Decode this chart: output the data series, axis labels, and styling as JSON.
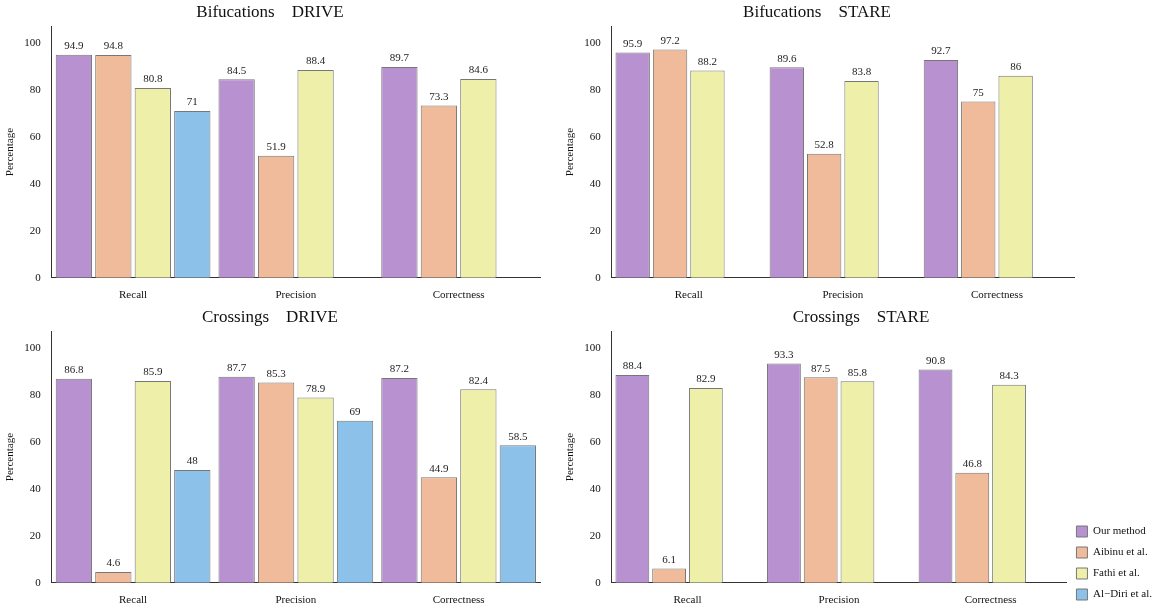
{
  "chart_data": [
    {
      "type": "bar",
      "title": "Bifucations    DRIVE",
      "ylabel": "Percentage",
      "categories": [
        "Recall",
        "Precision",
        "Correctness"
      ],
      "ylim": [
        0,
        107
      ],
      "yticks": [
        0,
        20,
        40,
        60,
        80,
        100
      ],
      "grid": false,
      "data_labels": true,
      "legend": false,
      "series": [
        {
          "color": "#b892d0",
          "values": [
            94.9,
            84.5,
            89.7
          ]
        },
        {
          "color": "#f0bb9a",
          "values": [
            94.8,
            51.9,
            73.3
          ]
        },
        {
          "color": "#eef0aa",
          "values": [
            80.8,
            88.4,
            84.6
          ]
        },
        {
          "color": "#8cc2ea",
          "values": [
            71,
            null,
            null
          ]
        }
      ]
    },
    {
      "type": "bar",
      "title": "Bifucations    STARE",
      "ylabel": "Percentage",
      "categories": [
        "Recall",
        "Precision",
        "Correctness"
      ],
      "ylim": [
        0,
        107
      ],
      "yticks": [
        0,
        20,
        40,
        60,
        80,
        100
      ],
      "grid": false,
      "data_labels": true,
      "legend": false,
      "series": [
        {
          "color": "#b892d0",
          "values": [
            95.9,
            89.6,
            92.7
          ]
        },
        {
          "color": "#f0bb9a",
          "values": [
            97.2,
            52.8,
            75
          ]
        },
        {
          "color": "#eef0aa",
          "values": [
            88.2,
            83.8,
            86
          ]
        },
        {
          "color": "#8cc2ea",
          "values": [
            null,
            null,
            null
          ]
        }
      ]
    },
    {
      "type": "bar",
      "title": "Crossings    DRIVE",
      "ylabel": "Percentage",
      "categories": [
        "Recall",
        "Precision",
        "Correctness"
      ],
      "ylim": [
        0,
        107
      ],
      "yticks": [
        0,
        20,
        40,
        60,
        80,
        100
      ],
      "grid": false,
      "data_labels": true,
      "legend": false,
      "series": [
        {
          "color": "#b892d0",
          "values": [
            86.8,
            87.7,
            87.2
          ]
        },
        {
          "color": "#f0bb9a",
          "values": [
            4.6,
            85.3,
            44.9
          ]
        },
        {
          "color": "#eef0aa",
          "values": [
            85.9,
            78.9,
            82.4
          ]
        },
        {
          "color": "#8cc2ea",
          "values": [
            48,
            69,
            58.5
          ]
        }
      ]
    },
    {
      "type": "bar",
      "title": "Crossings    STARE",
      "ylabel": "Percentage",
      "categories": [
        "Recall",
        "Precision",
        "Correctness"
      ],
      "ylim": [
        0,
        107
      ],
      "yticks": [
        0,
        20,
        40,
        60,
        80,
        100
      ],
      "grid": false,
      "data_labels": true,
      "legend": "bottom right",
      "series": [
        {
          "name": "Our method",
          "color": "#b892d0",
          "values": [
            88.4,
            93.3,
            90.8
          ]
        },
        {
          "name": "Aibinu et al.",
          "color": "#f0bb9a",
          "values": [
            6.1,
            87.5,
            46.8
          ]
        },
        {
          "name": "Fathi et al.",
          "color": "#eef0aa",
          "values": [
            82.9,
            85.8,
            84.3
          ]
        },
        {
          "name": "Al−Diri et al.",
          "color": "#8cc2ea",
          "values": [
            null,
            null,
            null
          ]
        }
      ]
    }
  ]
}
